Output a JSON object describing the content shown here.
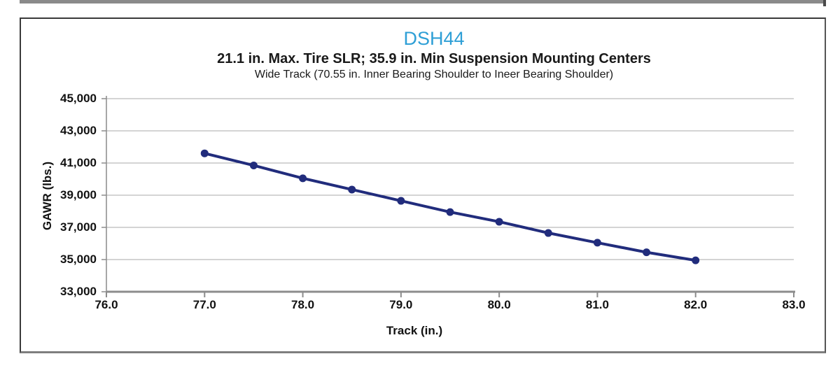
{
  "window": {
    "top_strip_color": "#8a8a8a"
  },
  "chart": {
    "title": "DSH44",
    "subtitle": "21.1 in. Max. Tire SLR; 35.9 in. Min Suspension Mounting Centers",
    "note": "Wide Track (70.55 in. Inner Bearing Shoulder to Ineer Bearing Shoulder)",
    "xlabel": "Track (in.)",
    "ylabel": "GAWR (lbs.)",
    "title_color": "#2e9fd6"
  },
  "chart_data": {
    "type": "line",
    "title": "DSH44",
    "subtitle": "21.1 in. Max. Tire SLR; 35.9 in. Min Suspension Mounting Centers",
    "annotation": "Wide Track (70.55 in. Inner Bearing Shoulder to Ineer Bearing Shoulder)",
    "xlabel": "Track (in.)",
    "ylabel": "GAWR (lbs.)",
    "x": [
      77.0,
      77.5,
      78.0,
      78.5,
      79.0,
      79.5,
      80.0,
      80.5,
      81.0,
      81.5,
      82.0
    ],
    "y": [
      41600,
      40850,
      40050,
      39350,
      38650,
      37950,
      37350,
      36650,
      36050,
      35450,
      34950
    ],
    "xlim": [
      76.0,
      83.0
    ],
    "ylim": [
      33000,
      45000
    ],
    "x_ticks": [
      76.0,
      77.0,
      78.0,
      79.0,
      80.0,
      81.0,
      82.0,
      83.0
    ],
    "x_tick_labels": [
      "76.0",
      "77.0",
      "78.0",
      "79.0",
      "80.0",
      "81.0",
      "82.0",
      "83.0"
    ],
    "y_ticks": [
      33000,
      35000,
      37000,
      39000,
      41000,
      43000,
      45000
    ],
    "y_tick_labels": [
      "33,000",
      "35,000",
      "37,000",
      "39,000",
      "41,000",
      "43,000",
      "45,000"
    ],
    "grid": "horizontal",
    "legend": "none",
    "line_color": "#212c7c",
    "marker": "circle",
    "marker_color": "#212c7c",
    "gridline_color": "#a9a9a9",
    "axis_color": "#8c8c8c"
  }
}
